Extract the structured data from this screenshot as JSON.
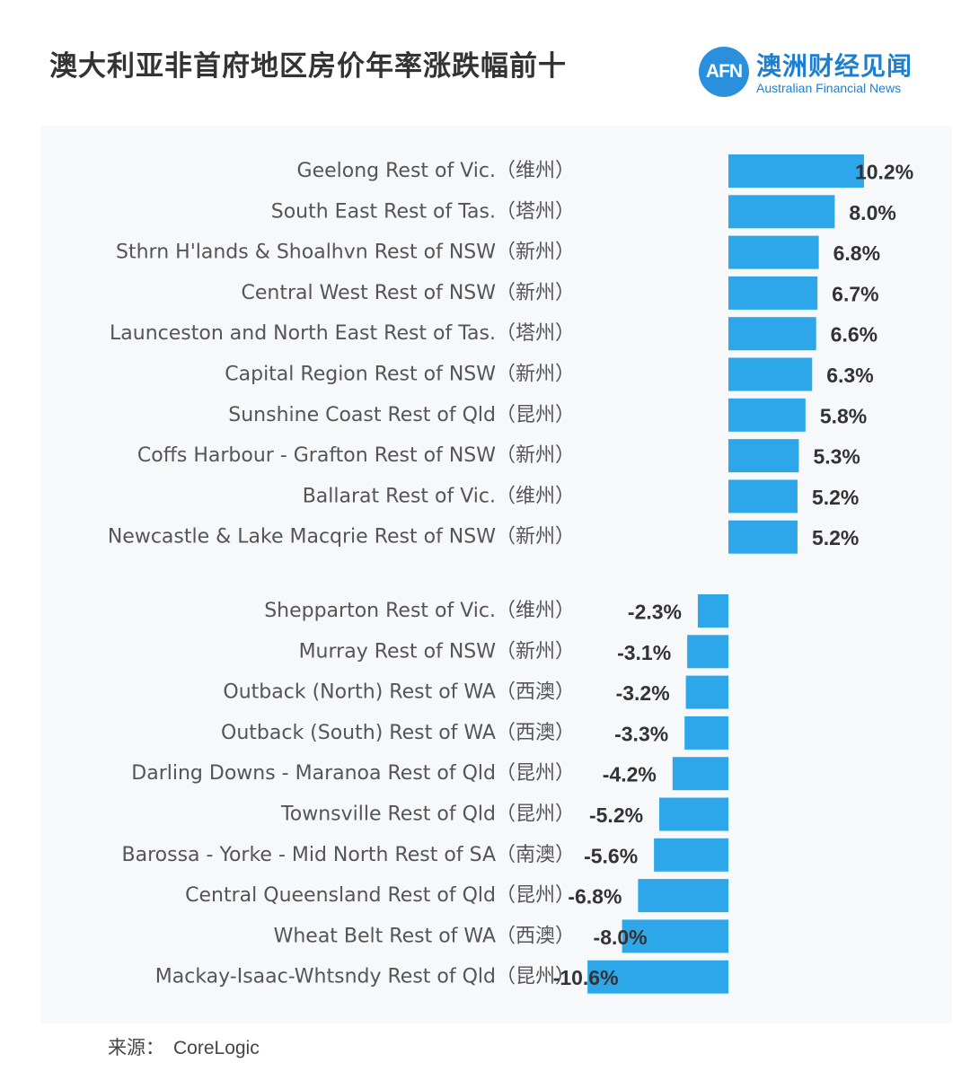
{
  "title": "澳大利亚非首府地区房价年率涨跌幅前十",
  "logo": {
    "mark": "AFN",
    "name_cn": "澳洲财经见闻",
    "name_en": "Australian Financial News"
  },
  "source": {
    "label": "来源：",
    "value": "CoreLogic"
  },
  "colors": {
    "bar": "#2ea7ea",
    "accent": "#1e7fd1",
    "text": "#555555",
    "panel": "#f7f8fa"
  },
  "chart_data": {
    "type": "bar",
    "orientation": "horizontal",
    "unit": "%",
    "groups": [
      {
        "categories": [
          "Geelong Rest of Vic.（维州）",
          "South East Rest of Tas.（塔州）",
          "Sthrn H'lands & Shoalhvn Rest of NSW（新州）",
          "Central West Rest of NSW（新州）",
          "Launceston and North East Rest of Tas.（塔州）",
          "Capital Region Rest of NSW（新州）",
          "Sunshine Coast Rest of Qld（昆州）",
          "Coffs Harbour - Grafton Rest of NSW（新州）",
          "Ballarat Rest of Vic.（维州）",
          "Newcastle & Lake Macqrie Rest of NSW（新州）"
        ],
        "values": [
          10.2,
          8.0,
          6.8,
          6.7,
          6.6,
          6.3,
          5.8,
          5.3,
          5.2,
          5.2
        ],
        "value_labels": [
          "10.2%",
          "8.0%",
          "6.8%",
          "6.7%",
          "6.6%",
          "6.3%",
          "5.8%",
          "5.3%",
          "5.2%",
          "5.2%"
        ]
      },
      {
        "categories": [
          "Shepparton Rest of Vic.（维州）",
          "Murray Rest of NSW（新州）",
          "Outback (North) Rest of WA（西澳）",
          "Outback (South) Rest of WA（西澳）",
          "Darling Downs - Maranoa Rest of Qld（昆州）",
          "Townsville Rest of Qld（昆州）",
          "Barossa - Yorke - Mid North Rest of SA（南澳）",
          "Central Queensland Rest of Qld（昆州）",
          "Wheat Belt Rest of WA（西澳）",
          "Mackay-Isaac-Whtsndy Rest of Qld（昆州）"
        ],
        "values": [
          -2.3,
          -3.1,
          -3.2,
          -3.3,
          -4.2,
          -5.2,
          -5.6,
          -6.8,
          -8.0,
          -10.6
        ],
        "value_labels": [
          "-2.3%",
          "-3.1%",
          "-3.2%",
          "-3.3%",
          "-4.2%",
          "-5.2%",
          "-5.6%",
          "-6.8%",
          "-8.0%",
          "-10.6%"
        ]
      }
    ]
  }
}
